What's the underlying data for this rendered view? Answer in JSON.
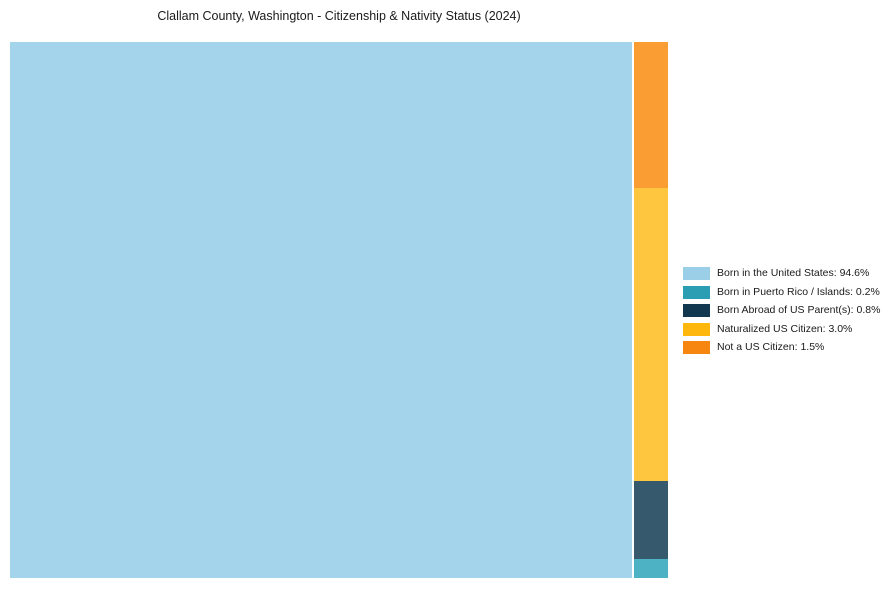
{
  "title": "Clallam County, Washington - Citizenship & Nativity Status (2024)",
  "chart_data": {
    "type": "treemap",
    "title": "Clallam County, Washington - Citizenship & Nativity Status (2024)",
    "unit": "percent",
    "total": 100,
    "items": [
      {
        "label": "Born in the United States",
        "value": 94.6,
        "display": "94.6%",
        "color": "#A3D4EB",
        "legend_color": "#9BCFE8"
      },
      {
        "label": "Born in Puerto Rico / Islands",
        "value": 0.2,
        "display": "0.2%",
        "color": "#4DB2C4",
        "legend_color": "#2B9EB3"
      },
      {
        "label": "Born Abroad of US Parent(s)",
        "value": 0.8,
        "display": "0.8%",
        "color": "#36596E",
        "legend_color": "#12384F"
      },
      {
        "label": "Naturalized US Citizen",
        "value": 3.0,
        "display": "3.0%",
        "color": "#FEC53E",
        "legend_color": "#FEB70D"
      },
      {
        "label": "Not a US Citizen",
        "value": 1.5,
        "display": "1.5%",
        "color": "#FA9E33",
        "legend_color": "#F6860F"
      }
    ],
    "layout": {
      "main_item": "Born in the United States",
      "minor_column_order_top_to_bottom": [
        "Not a US Citizen",
        "Naturalized US Citizen",
        "Born Abroad of US Parent(s)",
        "Born in Puerto Rico / Islands"
      ],
      "legend_position": "center-right",
      "grid": false,
      "background": "#FFFFFF"
    }
  },
  "legend": {
    "items": [
      {
        "label": "Born in the United States: 94.6%"
      },
      {
        "label": "Born in Puerto Rico / Islands: 0.2%"
      },
      {
        "label": "Born Abroad of US Parent(s): 0.8%"
      },
      {
        "label": "Naturalized US Citizen: 3.0%"
      },
      {
        "label": "Not a US Citizen: 1.5%"
      }
    ]
  }
}
